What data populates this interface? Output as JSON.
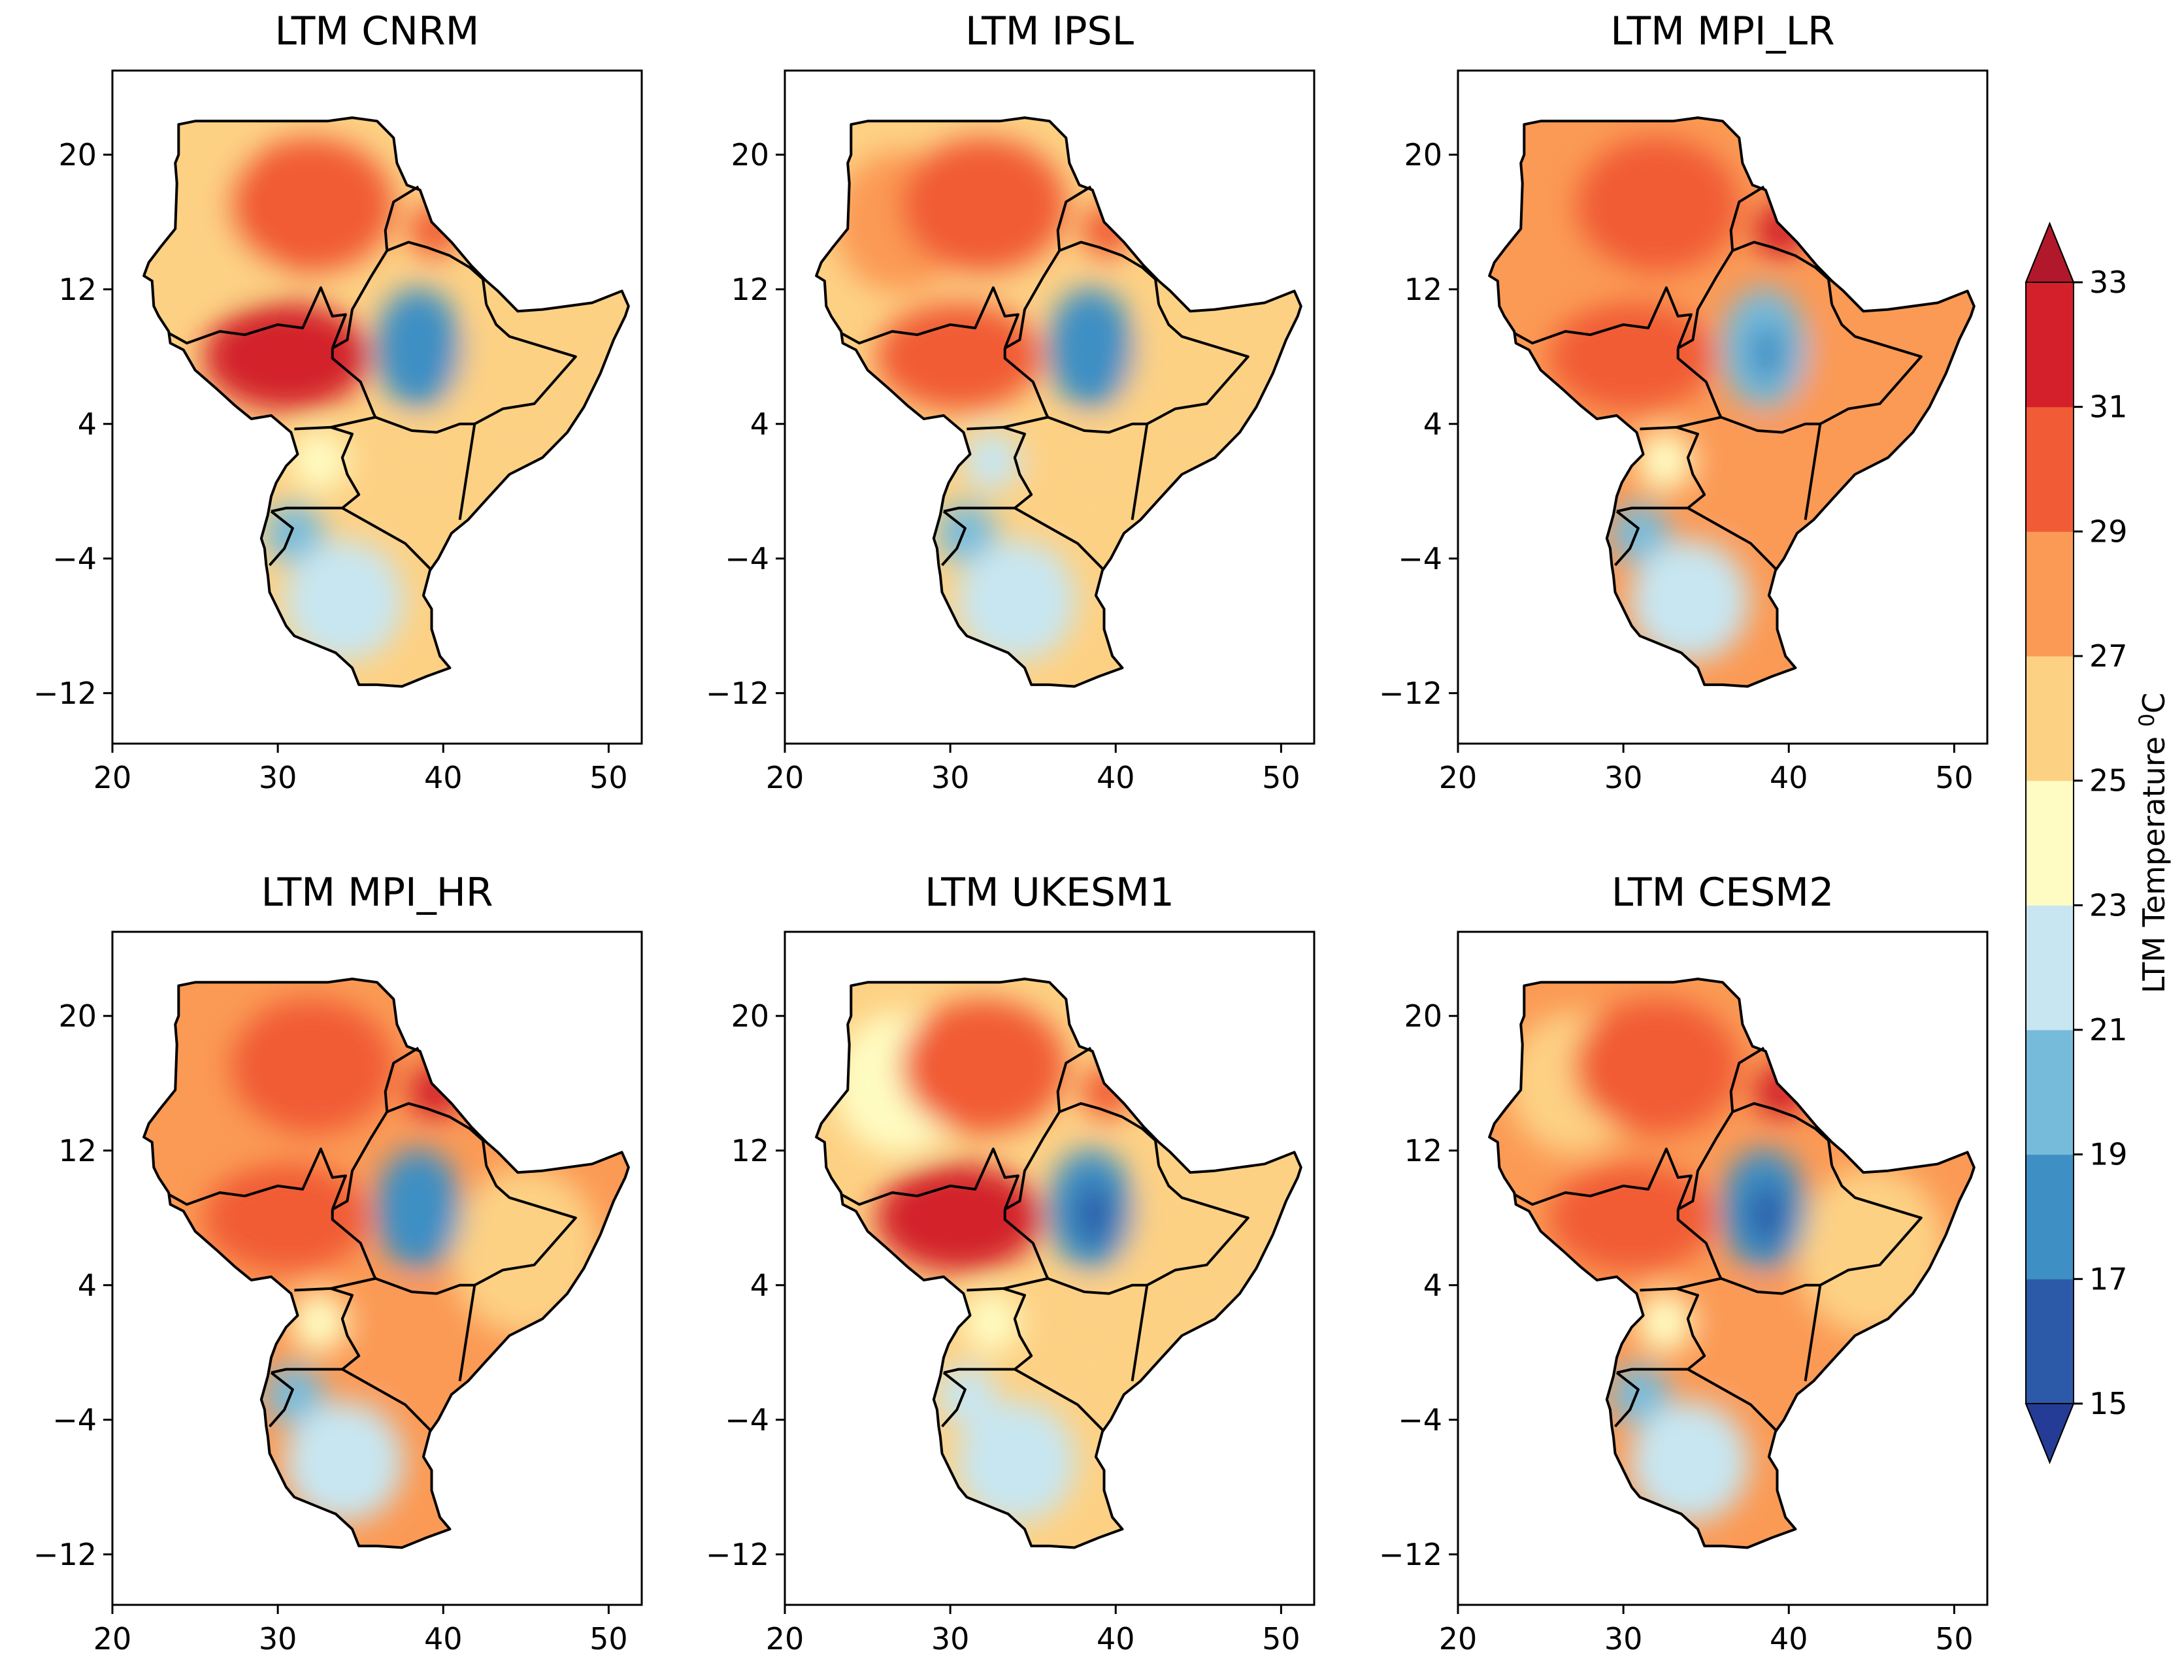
{
  "chart_data": {
    "type": "heatmap",
    "description_units": "degrees Celsius",
    "xlim": [
      20,
      52
    ],
    "ylim": [
      -15,
      25
    ],
    "xticks": [
      20,
      30,
      40,
      50
    ],
    "yticks": [
      20,
      12,
      4,
      -4,
      -12
    ],
    "xtick_labels": [
      "20",
      "30",
      "40",
      "50"
    ],
    "ytick_labels": [
      "20",
      "12",
      "4",
      "−4",
      "−12"
    ],
    "panels": [
      {
        "title": "LTM CNRM",
        "field": {
          "sudan": 29,
          "northwest": 26,
          "south_sudan": 31,
          "ethiopia_highlands": 18,
          "somalia": 26,
          "kenya": 26,
          "uganda": 24,
          "lake_victoria_region": 20,
          "tanzania": 22,
          "red_sea_coast": 30
        }
      },
      {
        "title": "LTM IPSL",
        "field": {
          "sudan": 30,
          "northwest": 27,
          "south_sudan": 29,
          "ethiopia_highlands": 18,
          "somalia": 26,
          "kenya": 25,
          "uganda": 22,
          "lake_victoria_region": 20,
          "tanzania": 21,
          "red_sea_coast": 29
        }
      },
      {
        "title": "LTM MPI_LR",
        "field": {
          "sudan": 30,
          "northwest": 27,
          "south_sudan": 30,
          "ethiopia_highlands": 19,
          "somalia": 27,
          "kenya": 27,
          "uganda": 24,
          "lake_victoria_region": 20,
          "tanzania": 22,
          "red_sea_coast": 31
        }
      },
      {
        "title": "LTM MPI_HR",
        "field": {
          "sudan": 30,
          "northwest": 27,
          "south_sudan": 30,
          "ethiopia_highlands": 18,
          "somalia": 26,
          "kenya": 28,
          "uganda": 24,
          "lake_victoria_region": 20,
          "tanzania": 22,
          "red_sea_coast": 31
        }
      },
      {
        "title": "LTM UKESM1",
        "field": {
          "sudan": 30,
          "northwest": 24,
          "south_sudan": 31,
          "ethiopia_highlands": 17,
          "somalia": 26,
          "kenya": 26,
          "uganda": 23,
          "lake_victoria_region": 21,
          "tanzania": 21,
          "red_sea_coast": 29
        }
      },
      {
        "title": "LTM CESM2",
        "field": {
          "sudan": 30,
          "northwest": 25,
          "south_sudan": 30,
          "ethiopia_highlands": 17,
          "somalia": 26,
          "kenya": 27,
          "uganda": 23,
          "lake_victoria_region": 20,
          "tanzania": 21,
          "red_sea_coast": 31
        }
      }
    ],
    "colorbar": {
      "label": "LTM Temperature ",
      "label_superscript": "0",
      "label_unit": "C",
      "levels": [
        15,
        17,
        19,
        21,
        23,
        25,
        27,
        29,
        31,
        33
      ],
      "tick_labels": [
        "15",
        "17",
        "19",
        "21",
        "23",
        "25",
        "27",
        "29",
        "31",
        "33"
      ],
      "colors": [
        "#2c5aa8",
        "#3d8fc4",
        "#77bbdb",
        "#c7e6f1",
        "#fefcc2",
        "#fdd184",
        "#fb9a55",
        "#f15c36",
        "#d3202b"
      ],
      "under_color": "#253c96",
      "over_color": "#b2182b",
      "extend": "both"
    }
  }
}
